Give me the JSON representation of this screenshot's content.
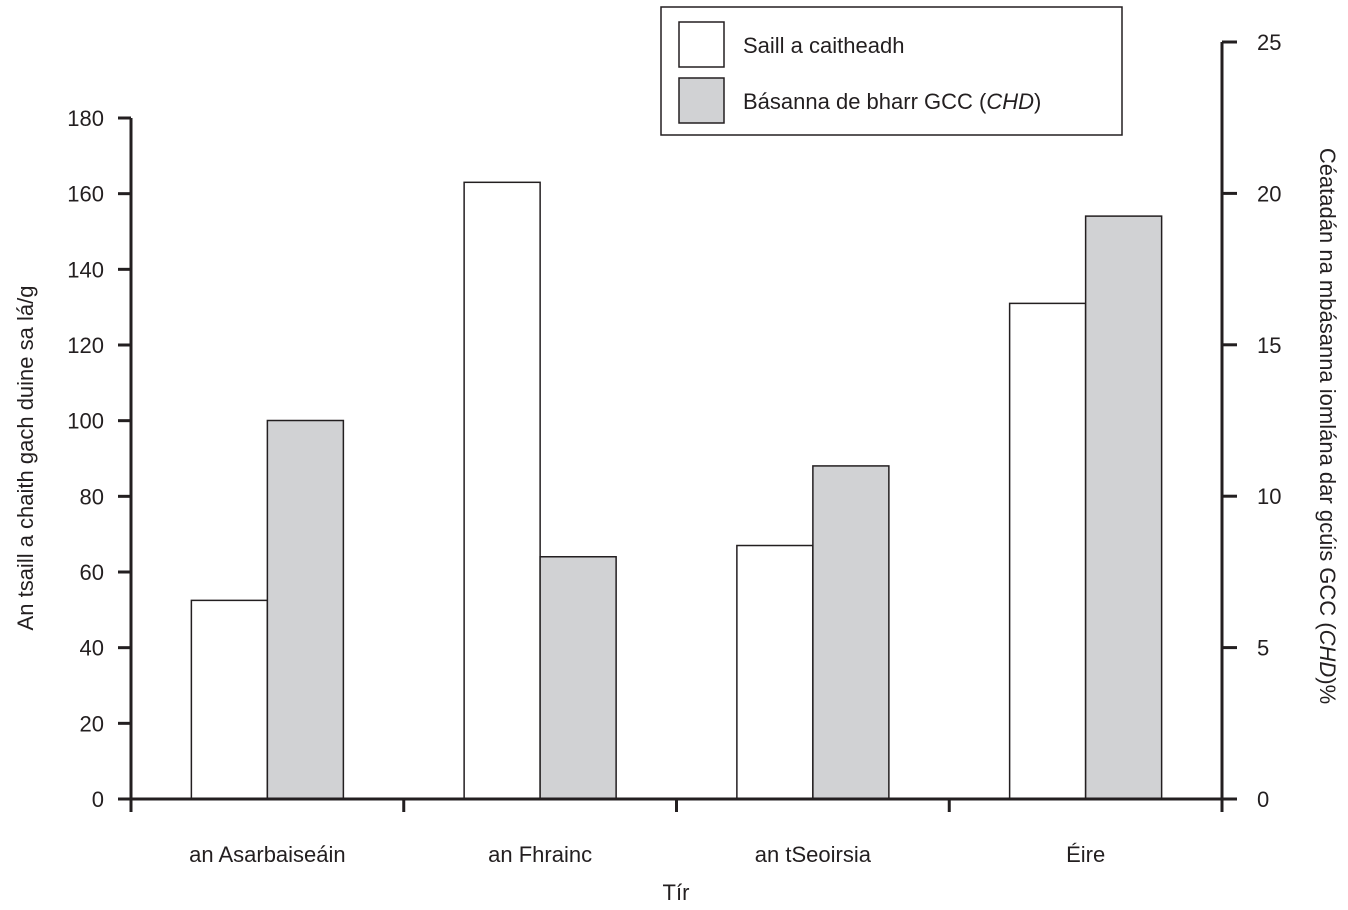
{
  "chart_data": {
    "type": "bar",
    "categories": [
      "an Asarbaiseáin",
      "an Fhrainc",
      "an tSeoirsia",
      "Éire"
    ],
    "series": [
      {
        "name": "Saill a caitheadh",
        "axis": "left",
        "color": "#ffffff",
        "values": [
          52.5,
          163,
          67,
          131
        ]
      },
      {
        "name": "Básanna de bharr GCC (CHD)",
        "name_main": "Básanna de bharr GCC (",
        "name_italic": "CHD",
        "name_close": ")",
        "axis": "right",
        "color": "#d1d2d4",
        "values": [
          12.5,
          8,
          11,
          19.25
        ]
      }
    ],
    "xlabel": "Tír",
    "ylabel_left": "An tsaill a chaith gach duine sa lá/g",
    "ylabel_right_main": "Céatadán na mbásanna iomlána dar gcúis GCC (",
    "ylabel_right_italic": "CHD",
    "ylabel_right_close": ")%",
    "ylim_left": [
      0,
      180
    ],
    "yticks_left": [
      0,
      20,
      40,
      60,
      80,
      100,
      120,
      140,
      160,
      180
    ],
    "ylim_right": [
      0,
      25
    ],
    "yticks_right": [
      0,
      5,
      10,
      15,
      20,
      25
    ],
    "grid": false,
    "legend_position": "top-right"
  }
}
